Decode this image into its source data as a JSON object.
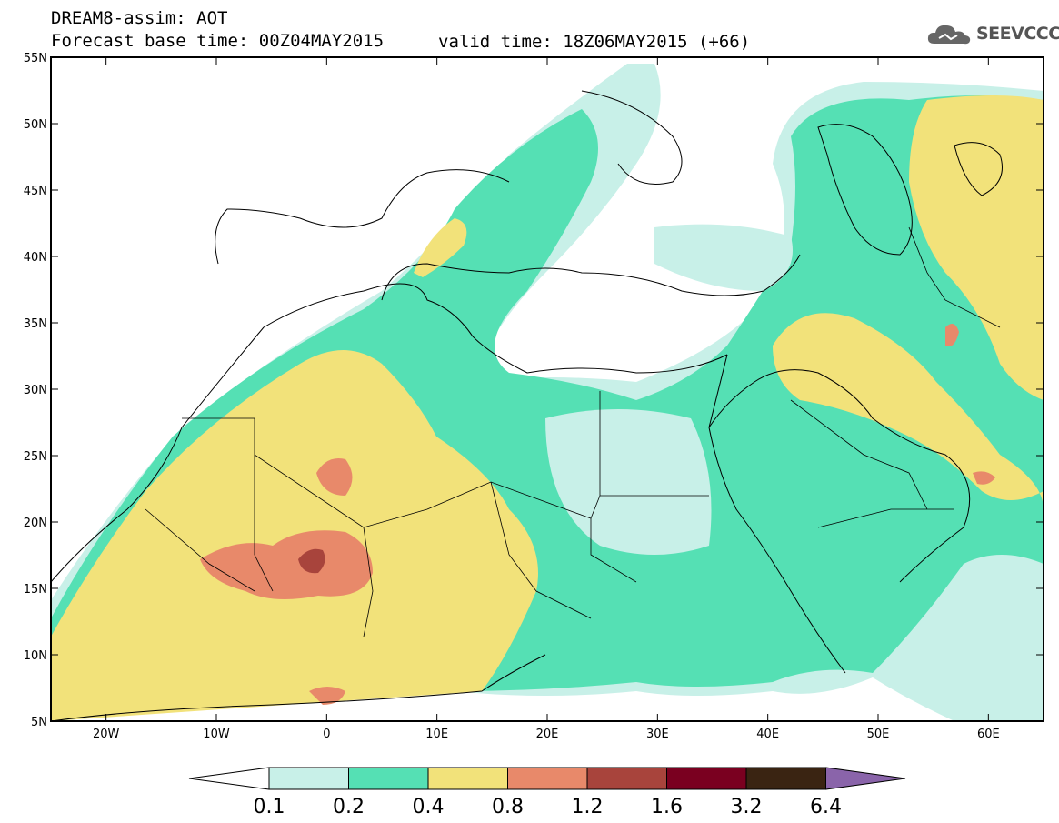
{
  "header": {
    "title": "DREAM8-assim: AOT",
    "base_time": "Forecast base time: 00Z04MAY2015",
    "valid_time": "valid time: 18Z06MAY2015 (+66)"
  },
  "logo": {
    "icon": "cloud-icon",
    "text": "SEEVCCC"
  },
  "map": {
    "lat_labels": [
      "55N",
      "50N",
      "45N",
      "40N",
      "35N",
      "30N",
      "25N",
      "20N",
      "15N",
      "10N",
      "5N"
    ],
    "lon_labels": [
      "20W",
      "10W",
      "0",
      "10E",
      "20E",
      "30E",
      "40E",
      "50E",
      "60E"
    ],
    "lat_range": [
      5,
      55
    ],
    "lon_range": [
      -25,
      65
    ]
  },
  "colorbar": {
    "labels": [
      "0.1",
      "0.2",
      "0.4",
      "0.8",
      "1.2",
      "1.6",
      "3.2",
      "6.4"
    ],
    "colors": [
      "#ffffff",
      "#c8f0e8",
      "#55e0b4",
      "#f2e27a",
      "#e8896a",
      "#a8443c",
      "#7a0020",
      "#3a2412",
      "#8a64aa"
    ]
  },
  "palette": {
    "below": "#ffffff",
    "c1": "#c8f0e8",
    "c2": "#55e0b4",
    "c3": "#f2e27a",
    "c4": "#e8896a",
    "c5": "#a8443c"
  }
}
